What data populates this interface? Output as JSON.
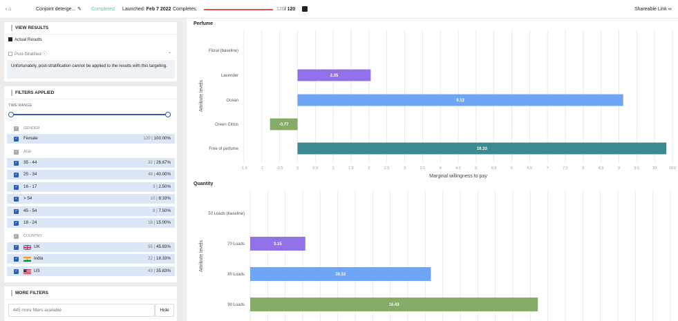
{
  "topbar": {
    "back": "‹",
    "title": "Conjoint deterge...",
    "status": "Completed",
    "launched_label": "Launched:",
    "launched_date": "Feb 7 2022",
    "completes_label": "Completes:",
    "completes_count": "120",
    "completes_total": "/ 120",
    "share": "Shareable Link",
    "progress": 1.0
  },
  "view_results": {
    "title": "VIEW RESULTS",
    "actual": "Actual Results",
    "post": "Post-Stratified",
    "note": "Unfortunately, post-stratification cannot be applied to the results with this targeting."
  },
  "filters": {
    "title": "FILTERS APPLIED",
    "time_range": "TIME RANGE",
    "groups": [
      {
        "name": "GENDER",
        "rows": [
          {
            "label": "Female",
            "count": "120",
            "pct": "100.00%"
          }
        ]
      },
      {
        "name": "AGE",
        "rows": [
          {
            "label": "35 - 44",
            "count": "32",
            "pct": "26.67%"
          },
          {
            "label": "25 - 34",
            "count": "48",
            "pct": "40.00%"
          },
          {
            "label": "16 - 17",
            "count": "3",
            "pct": "2.50%"
          },
          {
            "label": "> 54",
            "count": "10",
            "pct": "8.33%"
          },
          {
            "label": "45 - 54",
            "count": "9",
            "pct": "7.50%"
          },
          {
            "label": "18 - 24",
            "count": "18",
            "pct": "15.00%"
          }
        ]
      },
      {
        "name": "COUNTRY",
        "rows": [
          {
            "label": "UK",
            "count": "55",
            "pct": "45.83%"
          },
          {
            "label": "India",
            "count": "22",
            "pct": "18.33%"
          },
          {
            "label": "US",
            "count": "43",
            "pct": "35.83%"
          }
        ]
      }
    ]
  },
  "more_filters": {
    "title": "MORE FILTERS",
    "placeholder": "445 more filters available",
    "hide": "Hide"
  },
  "chart_data": [
    {
      "type": "bar",
      "title": "Perfume",
      "xlabel": "Marginal willingness to pay",
      "ylabel": "Attribute levels",
      "orientation": "horizontal",
      "xlim": [
        -1.5,
        10.5
      ],
      "ticks": [
        -1.5,
        -1,
        -0.5,
        0,
        0.5,
        1,
        1.5,
        2,
        2.5,
        3,
        3.5,
        4,
        4.5,
        5,
        5.5,
        6,
        6.5,
        7,
        7.5,
        8,
        8.5,
        9,
        9.5,
        10,
        10.5
      ],
      "categories": [
        "Floral (baseline)",
        "Lavender",
        "Ocean",
        "Green Citrus",
        "Free of perfume"
      ],
      "values": [
        0,
        2.05,
        9.12,
        -0.77,
        10.33
      ],
      "colors": [
        "#ffffff",
        "#9271e8",
        "#6ea5f7",
        "#84ac66",
        "#3c8a91"
      ]
    },
    {
      "type": "bar",
      "title": "Quantity",
      "xlabel": "",
      "ylabel": "Attribute levels",
      "orientation": "horizontal",
      "xlim": [
        0,
        24
      ],
      "categories": [
        "50 Loads (baseline)",
        "70 Loads",
        "80 Loads",
        "90 Loads"
      ],
      "values": [
        0,
        3.15,
        10.32,
        16.43
      ],
      "colors": [
        "#ffffff",
        "#9271e8",
        "#6ea5f7",
        "#84ac66"
      ]
    }
  ]
}
